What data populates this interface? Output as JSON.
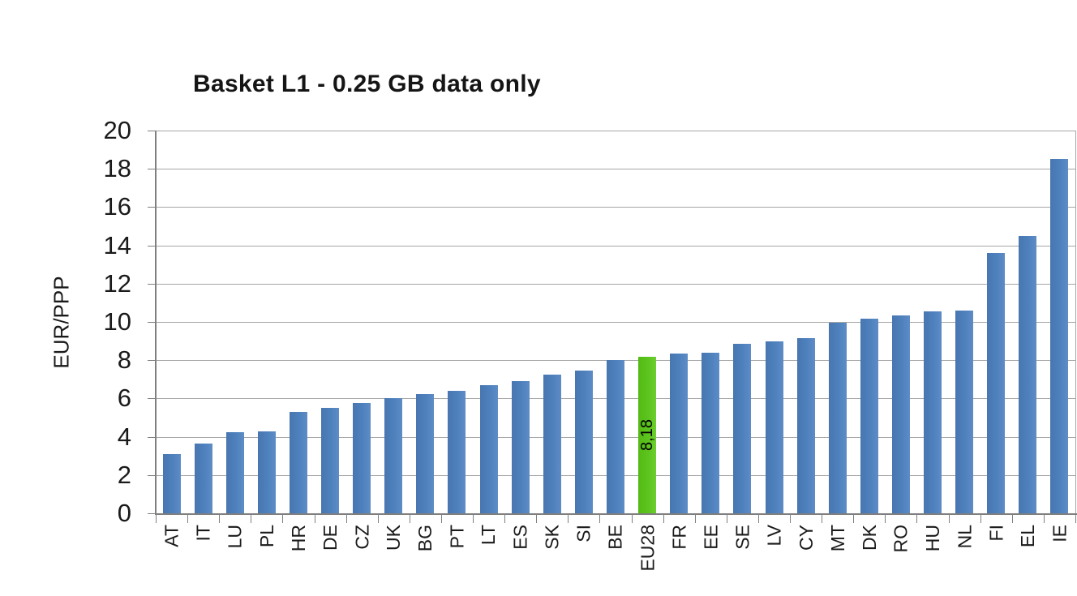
{
  "page": {
    "background": "#ffffff"
  },
  "chart_data": {
    "type": "bar",
    "title": "Basket L1 - 0.25 GB data only",
    "ylabel": "EUR/PPP",
    "xlabel": "",
    "ylim": [
      0,
      20
    ],
    "ytick_step": 2,
    "yticks": [
      0,
      2,
      4,
      6,
      8,
      10,
      12,
      14,
      16,
      18,
      20
    ],
    "grid": true,
    "legend": "none",
    "categories": [
      "AT",
      "IT",
      "LU",
      "PL",
      "HR",
      "DE",
      "CZ",
      "UK",
      "BG",
      "PT",
      "LT",
      "ES",
      "SK",
      "SI",
      "BE",
      "EU28",
      "FR",
      "EE",
      "SE",
      "LV",
      "CY",
      "MT",
      "DK",
      "RO",
      "HU",
      "NL",
      "FI",
      "EL",
      "IE"
    ],
    "values": [
      3.1,
      3.65,
      4.25,
      4.3,
      5.3,
      5.5,
      5.75,
      6.0,
      6.25,
      6.4,
      6.7,
      6.9,
      7.25,
      7.45,
      8.0,
      8.18,
      8.35,
      8.4,
      8.85,
      9.0,
      9.15,
      9.95,
      10.15,
      10.35,
      10.55,
      10.6,
      13.6,
      14.5,
      18.5
    ],
    "highlight": {
      "category": "EU28",
      "value": 8.18,
      "value_label": "8,18",
      "color": "#5CC41E"
    },
    "colors": {
      "bar": "#4E81BD",
      "highlight": "#5CC41E",
      "gridline": "#A6A6A6",
      "axis": "#7F7F7F",
      "text": "#1A1A1A"
    }
  }
}
